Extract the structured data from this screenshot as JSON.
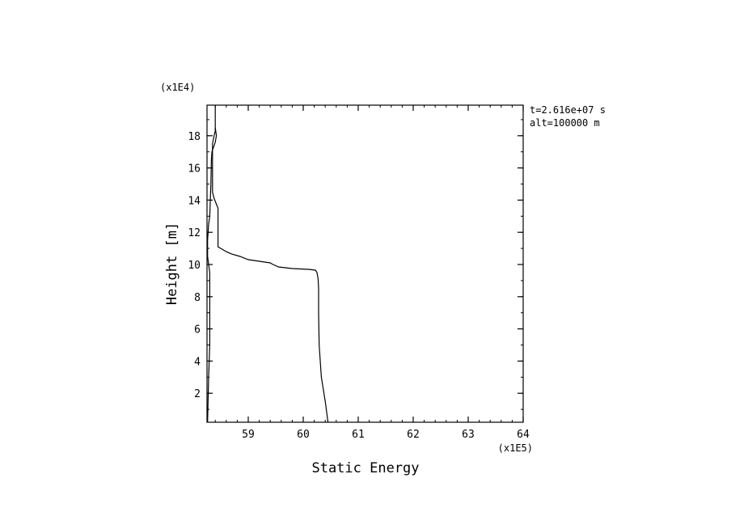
{
  "chart_data": {
    "type": "line",
    "xlabel": "Static Energy",
    "ylabel": "Height [m]",
    "x_multiplier_label": "(x1E5)",
    "y_multiplier_label": "(x1E4)",
    "xlim": [
      58.25,
      64
    ],
    "ylim": [
      0.2,
      19.9
    ],
    "x_ticks": [
      59,
      60,
      61,
      62,
      63,
      64
    ],
    "y_ticks": [
      2,
      4,
      6,
      8,
      10,
      12,
      14,
      16,
      18
    ],
    "grid": false,
    "annotations": [
      "t=2.616e+07 s",
      "alt=100000 m"
    ],
    "series": [
      {
        "points": [
          [
            60.45,
            0.2
          ],
          [
            60.4,
            1.5
          ],
          [
            60.33,
            3.0
          ],
          [
            60.29,
            5.0
          ],
          [
            60.28,
            7.0
          ],
          [
            60.28,
            8.5
          ],
          [
            60.27,
            9.1
          ],
          [
            60.25,
            9.5
          ],
          [
            60.22,
            9.65
          ],
          [
            60.1,
            9.7
          ],
          [
            59.8,
            9.75
          ],
          [
            59.55,
            9.85
          ],
          [
            59.45,
            10.0
          ],
          [
            59.4,
            10.1
          ],
          [
            59.2,
            10.2
          ],
          [
            59.0,
            10.3
          ],
          [
            58.85,
            10.5
          ],
          [
            58.7,
            10.65
          ],
          [
            58.6,
            10.8
          ],
          [
            58.5,
            11.0
          ],
          [
            58.45,
            11.1
          ],
          [
            58.45,
            13.5
          ],
          [
            58.38,
            14.1
          ],
          [
            58.35,
            14.5
          ],
          [
            58.35,
            16.0
          ],
          [
            58.35,
            17.5
          ],
          [
            58.38,
            18.0
          ],
          [
            58.4,
            18.3
          ],
          [
            58.4,
            19.0
          ],
          [
            58.4,
            19.9
          ]
        ]
      },
      {
        "points": [
          [
            58.26,
            0.2
          ],
          [
            58.28,
            3.0
          ],
          [
            58.3,
            5.0
          ],
          [
            58.3,
            7.0
          ],
          [
            58.3,
            8.5
          ],
          [
            58.3,
            9.5
          ],
          [
            58.28,
            10.0
          ],
          [
            58.26,
            10.5
          ],
          [
            58.26,
            11.5
          ],
          [
            58.28,
            12.5
          ],
          [
            58.3,
            13.0
          ],
          [
            58.32,
            15.0
          ],
          [
            58.33,
            16.5
          ],
          [
            58.34,
            17.0
          ],
          [
            58.4,
            17.6
          ],
          [
            58.42,
            18.0
          ],
          [
            58.4,
            18.5
          ]
        ]
      }
    ]
  }
}
